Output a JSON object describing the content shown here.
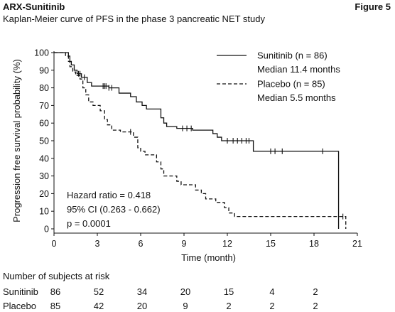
{
  "header": {
    "product": "ARX-Sunitinib",
    "figure": "Figure 5",
    "subtitle": "Kaplan-Meier curve of PFS in the phase 3 pancreatic NET study"
  },
  "chart_data": {
    "type": "line",
    "title": "Kaplan-Meier curve of PFS in the phase 3 pancreatic NET study",
    "xlabel": "Time (month)",
    "ylabel": "Progression free survival probability (%)",
    "xlim": [
      0,
      21
    ],
    "ylim": [
      0,
      100
    ],
    "xticks": [
      0,
      3,
      6,
      9,
      12,
      15,
      18,
      21
    ],
    "yticks": [
      0,
      10,
      20,
      30,
      40,
      50,
      60,
      70,
      80,
      90,
      100
    ],
    "xtick_labels": [
      "0",
      "3",
      "6",
      "9",
      "12",
      "15",
      "18",
      "21"
    ],
    "ytick_labels": [
      "0",
      "10",
      "20",
      "30",
      "40",
      "50",
      "60",
      "70",
      "80",
      "90",
      "100"
    ],
    "grid": false,
    "legend_position": "top-right",
    "series": [
      {
        "name": "Sunitinib (n = 86)",
        "median_label": "Median 11.4 months",
        "style": "solid",
        "color": "#111111",
        "steps": [
          [
            0,
            100
          ],
          [
            1.0,
            98
          ],
          [
            1.1,
            95
          ],
          [
            1.2,
            93
          ],
          [
            1.4,
            90
          ],
          [
            1.6,
            88
          ],
          [
            1.9,
            86
          ],
          [
            2.3,
            83
          ],
          [
            2.6,
            81
          ],
          [
            3.8,
            80
          ],
          [
            4.5,
            77
          ],
          [
            5.3,
            75
          ],
          [
            5.7,
            72
          ],
          [
            6.1,
            70
          ],
          [
            6.4,
            68
          ],
          [
            7.4,
            63
          ],
          [
            7.6,
            60
          ],
          [
            7.8,
            58
          ],
          [
            8.5,
            57
          ],
          [
            9.6,
            56
          ],
          [
            11.0,
            54
          ],
          [
            11.3,
            52
          ],
          [
            11.6,
            50
          ],
          [
            13.8,
            44
          ],
          [
            19.7,
            0
          ]
        ],
        "censors": [
          [
            1.7,
            88
          ],
          [
            1.8,
            88
          ],
          [
            2.1,
            86
          ],
          [
            3.4,
            81
          ],
          [
            3.5,
            81
          ],
          [
            3.6,
            81
          ],
          [
            3.8,
            80
          ],
          [
            4.0,
            80
          ],
          [
            8.9,
            57
          ],
          [
            9.2,
            57
          ],
          [
            9.5,
            57
          ],
          [
            12.0,
            50
          ],
          [
            12.4,
            50
          ],
          [
            12.7,
            50
          ],
          [
            13.0,
            50
          ],
          [
            13.3,
            50
          ],
          [
            13.5,
            50
          ],
          [
            15.0,
            44
          ],
          [
            15.3,
            44
          ],
          [
            15.8,
            44
          ],
          [
            18.6,
            44
          ]
        ],
        "end": 19.7
      },
      {
        "name": "Placebo (n = 85)",
        "median_label": "Median 5.5 months",
        "style": "dashed",
        "color": "#111111",
        "steps": [
          [
            0,
            100
          ],
          [
            0.8,
            98
          ],
          [
            1.0,
            95
          ],
          [
            1.1,
            92
          ],
          [
            1.3,
            89
          ],
          [
            1.5,
            87
          ],
          [
            1.8,
            85
          ],
          [
            2.0,
            80
          ],
          [
            2.2,
            76
          ],
          [
            2.4,
            72
          ],
          [
            2.7,
            70
          ],
          [
            3.2,
            67
          ],
          [
            3.5,
            62
          ],
          [
            3.7,
            59
          ],
          [
            4.0,
            56
          ],
          [
            4.6,
            55
          ],
          [
            5.5,
            52
          ],
          [
            5.8,
            46
          ],
          [
            6.0,
            44
          ],
          [
            6.3,
            42
          ],
          [
            7.1,
            38
          ],
          [
            7.4,
            34
          ],
          [
            7.6,
            30
          ],
          [
            8.5,
            27
          ],
          [
            8.8,
            25
          ],
          [
            9.8,
            22
          ],
          [
            10.2,
            20
          ],
          [
            10.5,
            17
          ],
          [
            11.2,
            15
          ],
          [
            11.8,
            12
          ],
          [
            12.1,
            9
          ],
          [
            12.5,
            7
          ],
          [
            20.2,
            0
          ]
        ],
        "censors": [
          [
            5.3,
            55
          ],
          [
            20.0,
            7
          ]
        ],
        "end": 20.2
      }
    ],
    "annotations": [
      "Hazard ratio = 0.418",
      "95% CI (0.263 - 0.662)",
      "p = 0.0001"
    ]
  },
  "risk_table": {
    "title": "Number of subjects at risk",
    "times": [
      0,
      3,
      6,
      9,
      12,
      15,
      18
    ],
    "rows": [
      {
        "name": "Sunitinib",
        "values": [
          "86",
          "52",
          "34",
          "20",
          "15",
          "4",
          "2"
        ]
      },
      {
        "name": "Placebo",
        "values": [
          "85",
          "42",
          "20",
          "9",
          "2",
          "2",
          "2"
        ]
      }
    ]
  }
}
